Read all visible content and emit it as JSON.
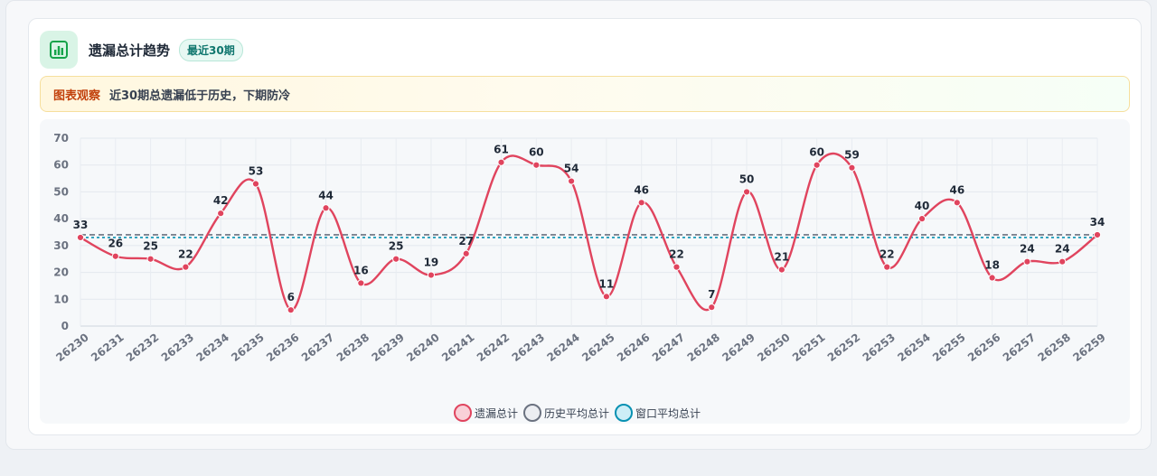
{
  "card": {
    "title": "遗漏总计趋势",
    "badge": "最近30期",
    "observe_label": "图表观察",
    "observe_text": "近30期总遗漏低于历史，下期防冷"
  },
  "colors": {
    "series": "#e0445e",
    "history_avg": "#6b7280",
    "window_avg": "#0891b2",
    "accent_green": "#16a34a"
  },
  "icons": {
    "header": "bar-chart-icon"
  },
  "chart_data": {
    "type": "line",
    "title": "",
    "xlabel": "",
    "ylabel": "",
    "ylim": [
      0,
      70
    ],
    "yticks": [
      0,
      10,
      20,
      30,
      40,
      50,
      60,
      70
    ],
    "grid": true,
    "legend_position": "bottom-center",
    "x": [
      "26230",
      "26231",
      "26232",
      "26233",
      "26234",
      "26235",
      "26236",
      "26237",
      "26238",
      "26239",
      "26240",
      "26241",
      "26242",
      "26243",
      "26244",
      "26245",
      "26246",
      "26247",
      "26248",
      "26249",
      "26250",
      "26251",
      "26252",
      "26253",
      "26254",
      "26255",
      "26256",
      "26257",
      "26258",
      "26259"
    ],
    "series": [
      {
        "name": "遗漏总计",
        "values": [
          33,
          26,
          25,
          22,
          42,
          53,
          6,
          44,
          16,
          25,
          19,
          27,
          61,
          60,
          54,
          11,
          46,
          22,
          7,
          50,
          21,
          60,
          59,
          22,
          40,
          46,
          18,
          24,
          24,
          34
        ],
        "data_labels": true
      },
      {
        "name": "历史平均总计",
        "values": [
          34,
          34,
          34,
          34,
          34,
          34,
          34,
          34,
          34,
          34,
          34,
          34,
          34,
          34,
          34,
          34,
          34,
          34,
          34,
          34,
          34,
          34,
          34,
          34,
          34,
          34,
          34,
          34,
          34,
          34
        ]
      },
      {
        "name": "窗口平均总计",
        "values": [
          33,
          33,
          33,
          33,
          33,
          33,
          33,
          33,
          33,
          33,
          33,
          33,
          33,
          33,
          33,
          33,
          33,
          33,
          33,
          33,
          33,
          33,
          33,
          33,
          33,
          33,
          33,
          33,
          33,
          33
        ]
      }
    ]
  }
}
